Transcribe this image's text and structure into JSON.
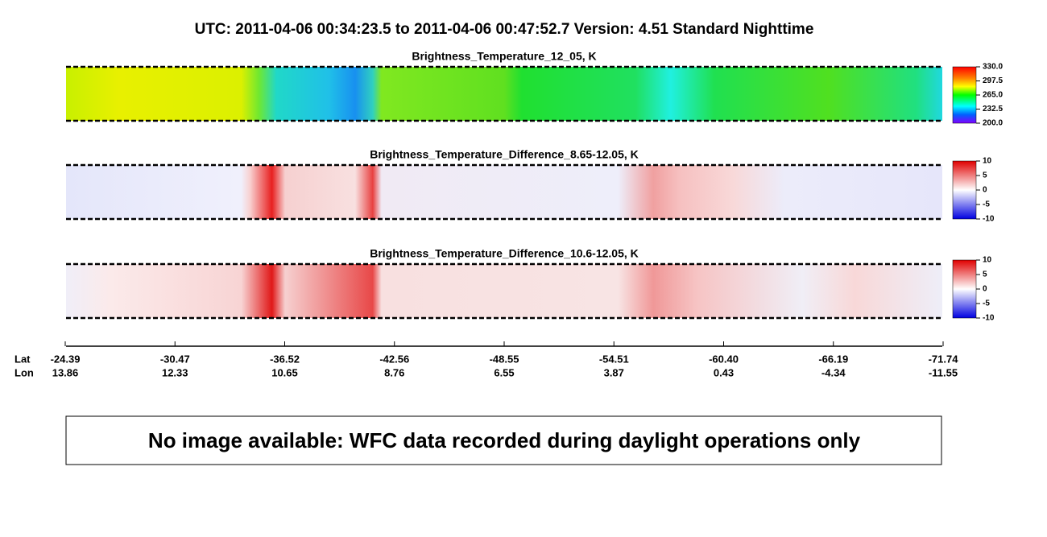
{
  "title": "UTC:  2011-04-06   00:34:23.5  to  2011-04-06   00:47:52.7    Version: 4.51  Standard Nighttime",
  "panels": [
    {
      "title": "Brightness_Temperature_12_05, K",
      "colorbar_ticks": [
        {
          "value": 330,
          "label": "330.0"
        },
        {
          "value": 297.5,
          "label": "297.5"
        },
        {
          "value": 265,
          "label": "265.0"
        },
        {
          "value": 232.5,
          "label": "232.5"
        },
        {
          "value": 200,
          "label": "200.0"
        }
      ]
    },
    {
      "title": "Brightness_Temperature_Difference_8.65-12.05, K",
      "colorbar_ticks": [
        10,
        5,
        0,
        -5,
        -10
      ]
    },
    {
      "title": "Brightness_Temperature_Difference_10.6-12.05, K",
      "colorbar_ticks": [
        10,
        5,
        0,
        -5,
        -10
      ]
    }
  ],
  "x_axis": {
    "row_labels": [
      "Lat",
      "Lon"
    ],
    "lat": [
      -24.39,
      -30.47,
      -36.52,
      -42.56,
      -48.55,
      -54.51,
      {
        "value": -60.4,
        "label": "-60.40"
      },
      -66.19,
      -71.74
    ],
    "lon": [
      13.86,
      12.33,
      10.65,
      8.76,
      6.55,
      3.87,
      0.43,
      -4.34,
      -11.55
    ]
  },
  "message": "No image available: WFC data recorded during daylight operations only"
}
